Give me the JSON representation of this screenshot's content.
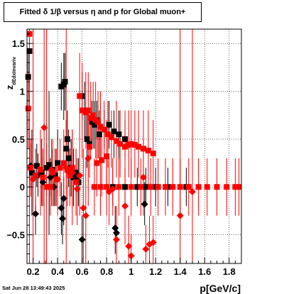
{
  "chart_data": {
    "type": "scatter",
    "title": "Fitted δ 1/β versus η and p for Global muon+",
    "xlabel": "p[GeV/c]",
    "ylabel": "z",
    "ylabel_sub": "dEdxInvariv",
    "xlim": [
      0.15,
      1.9
    ],
    "ylim": [
      -0.8,
      1.65
    ],
    "xticks": [
      0.2,
      0.4,
      0.6,
      0.8,
      1.0,
      1.2,
      1.4,
      1.6,
      1.8
    ],
    "xtick_labels": [
      "0.2",
      "0.4",
      "0.6",
      "0.8",
      "1",
      "1.2",
      "1.4",
      "1.6",
      "1.8"
    ],
    "yticks": [
      -0.5,
      0,
      0.5,
      1,
      1.5
    ],
    "ytick_labels": [
      "−0.5",
      "0",
      "0.5",
      "1",
      "1.5"
    ],
    "grid": true,
    "timestamp": "Sat Jun 28 13:49:43 2025",
    "series": [
      {
        "color": "#000000",
        "marker": "square",
        "points": [
          {
            "x": 0.17,
            "y": 1.42,
            "lo": -0.8,
            "hi": 1.65
          },
          {
            "x": 0.16,
            "y": 1.15,
            "lo": 0.9,
            "hi": 1.4
          },
          {
            "x": 0.19,
            "y": 0.15,
            "lo": -0.3,
            "hi": 0.6
          },
          {
            "x": 0.23,
            "y": 0.22,
            "lo": 0.0,
            "hi": 0.45
          },
          {
            "x": 0.27,
            "y": 0.15,
            "lo": -0.2,
            "hi": 0.5
          },
          {
            "x": 0.31,
            "y": 0.2,
            "lo": -0.1,
            "hi": 0.45
          },
          {
            "x": 0.33,
            "y": 0.23,
            "lo": -0.5,
            "hi": 1.0
          },
          {
            "x": 0.36,
            "y": 0.18,
            "lo": 0.0,
            "hi": 0.4
          },
          {
            "x": 0.38,
            "y": 0.12,
            "lo": -0.2,
            "hi": 0.4
          },
          {
            "x": 0.4,
            "y": 0.25,
            "lo": -0.1,
            "hi": 0.6
          },
          {
            "x": 0.43,
            "y": 1.05,
            "lo": 0.8,
            "hi": 1.3
          },
          {
            "x": 0.45,
            "y": 1.07,
            "lo": 0.7,
            "hi": 1.4
          },
          {
            "x": 0.46,
            "y": 1.1,
            "lo": 0.8,
            "hi": 1.4
          },
          {
            "x": 0.47,
            "y": 0.4,
            "lo": 0.1,
            "hi": 0.7
          },
          {
            "x": 0.48,
            "y": 0.5,
            "lo": 0.2,
            "hi": 0.8
          },
          {
            "x": 0.49,
            "y": 0.3,
            "lo": 0.0,
            "hi": 0.6
          },
          {
            "x": 0.51,
            "y": 0.2,
            "lo": -0.1,
            "hi": 0.5
          },
          {
            "x": 0.53,
            "y": 0.1,
            "lo": -0.2,
            "hi": 0.4
          },
          {
            "x": 0.55,
            "y": 0.15,
            "lo": -0.1,
            "hi": 0.4
          },
          {
            "x": 0.57,
            "y": 0.05,
            "lo": -0.2,
            "hi": 0.3
          },
          {
            "x": 0.6,
            "y": 0.95,
            "lo": 0.7,
            "hi": 1.2
          },
          {
            "x": 0.62,
            "y": 0.8,
            "lo": 0.5,
            "hi": 1.1
          },
          {
            "x": 0.64,
            "y": 0.5,
            "lo": 0.2,
            "hi": 0.8
          },
          {
            "x": 0.66,
            "y": 0.45,
            "lo": 0.2,
            "hi": 0.7
          },
          {
            "x": 0.68,
            "y": 0.68,
            "lo": 0.4,
            "hi": 0.9
          },
          {
            "x": 0.7,
            "y": 0.65,
            "lo": 0.4,
            "hi": 0.9
          },
          {
            "x": 0.72,
            "y": 0.7,
            "lo": 0.5,
            "hi": 0.9
          },
          {
            "x": 0.74,
            "y": 0.55,
            "lo": 0.3,
            "hi": 0.8
          },
          {
            "x": 0.78,
            "y": 0.6,
            "lo": 0.4,
            "hi": 0.8
          },
          {
            "x": 0.82,
            "y": 0.65,
            "lo": 0.4,
            "hi": 0.9
          },
          {
            "x": 0.86,
            "y": 0.58,
            "lo": 0.3,
            "hi": 0.8
          },
          {
            "x": 0.9,
            "y": 0.55,
            "lo": 0.3,
            "hi": 0.8
          },
          {
            "x": 0.95,
            "y": 0.5,
            "lo": 0.3,
            "hi": 0.7
          },
          {
            "x": 0.85,
            "y": 0.0,
            "lo": -0.2,
            "hi": 0.2
          },
          {
            "x": 0.95,
            "y": 0.0,
            "lo": -0.2,
            "hi": 0.2
          },
          {
            "x": 1.05,
            "y": 0.0,
            "lo": -0.2,
            "hi": 0.2
          },
          {
            "x": 1.12,
            "y": 0.0,
            "lo": -0.2,
            "hi": 0.2
          },
          {
            "x": 1.2,
            "y": 0.0,
            "lo": -0.2,
            "hi": 0.2
          },
          {
            "x": 1.3,
            "y": 0.0,
            "lo": -0.2,
            "hi": 0.2
          },
          {
            "x": 1.45,
            "y": 0.0,
            "lo": -0.2,
            "hi": 0.2
          }
        ]
      },
      {
        "color": "#000000",
        "marker": "diamond",
        "points": [
          {
            "x": 0.18,
            "y": 0.22,
            "lo": 0.0,
            "hi": 0.45
          },
          {
            "x": 0.22,
            "y": -0.28,
            "lo": -0.5,
            "hi": -0.1
          },
          {
            "x": 0.24,
            "y": 0.12,
            "lo": -0.1,
            "hi": 0.35
          },
          {
            "x": 0.28,
            "y": 0.05,
            "lo": -0.2,
            "hi": 0.3
          },
          {
            "x": 0.34,
            "y": 0.1,
            "lo": -0.1,
            "hi": 0.3
          },
          {
            "x": 0.37,
            "y": 0.0,
            "lo": -0.2,
            "hi": 0.2
          },
          {
            "x": 0.43,
            "y": -0.22,
            "lo": -0.5,
            "hi": 0.05
          },
          {
            "x": 0.44,
            "y": -0.33,
            "lo": -0.6,
            "hi": -0.1
          },
          {
            "x": 0.45,
            "y": -0.12,
            "lo": -0.4,
            "hi": 0.1
          },
          {
            "x": 0.5,
            "y": 0.15,
            "lo": -0.1,
            "hi": 0.4
          },
          {
            "x": 0.55,
            "y": 0.08,
            "lo": -0.1,
            "hi": 0.3
          },
          {
            "x": 0.6,
            "y": -0.55,
            "lo": -0.8,
            "hi": -0.3
          },
          {
            "x": 0.87,
            "y": -0.43,
            "lo": -0.7,
            "hi": -0.2
          },
          {
            "x": 0.88,
            "y": -0.48,
            "lo": -0.8,
            "hi": -0.2
          },
          {
            "x": 1.11,
            "y": -0.18,
            "lo": -0.4,
            "hi": 0.05
          }
        ]
      },
      {
        "color": "#ff0000",
        "marker": "square",
        "points": [
          {
            "x": 0.17,
            "y": 1.6,
            "lo": -0.8,
            "hi": 1.65
          },
          {
            "x": 0.16,
            "y": 0.82,
            "lo": 0.4,
            "hi": 1.2
          },
          {
            "x": 0.18,
            "y": 0.2,
            "lo": -0.1,
            "hi": 0.5
          },
          {
            "x": 0.22,
            "y": 0.12,
            "lo": -0.2,
            "hi": 0.4
          },
          {
            "x": 0.26,
            "y": 0.18,
            "lo": -0.3,
            "hi": 0.6
          },
          {
            "x": 0.28,
            "y": 0.1,
            "lo": -0.2,
            "hi": 0.4
          },
          {
            "x": 0.31,
            "y": 0.0,
            "lo": -0.8,
            "hi": 1.65
          },
          {
            "x": 0.34,
            "y": 0.0,
            "lo": -0.3,
            "hi": 0.3
          },
          {
            "x": 0.36,
            "y": 0.15,
            "lo": -0.2,
            "hi": 0.5
          },
          {
            "x": 0.39,
            "y": 0.08,
            "lo": -0.2,
            "hi": 0.4
          },
          {
            "x": 0.42,
            "y": 0.2,
            "lo": -0.1,
            "hi": 0.5
          },
          {
            "x": 0.45,
            "y": 0.25,
            "lo": -0.1,
            "hi": 0.6
          },
          {
            "x": 0.48,
            "y": 0.18,
            "lo": -0.2,
            "hi": 0.5
          },
          {
            "x": 0.5,
            "y": 0.12,
            "lo": -0.2,
            "hi": 0.4
          },
          {
            "x": 0.52,
            "y": 0.2,
            "lo": -0.2,
            "hi": 0.6
          },
          {
            "x": 0.55,
            "y": 0.05,
            "lo": -0.3,
            "hi": 0.4
          },
          {
            "x": 0.58,
            "y": 0.95,
            "lo": 0.5,
            "hi": 1.4
          },
          {
            "x": 0.6,
            "y": 0.8,
            "lo": 0.3,
            "hi": 1.3
          },
          {
            "x": 0.63,
            "y": 0.78,
            "lo": 0.4,
            "hi": 1.2
          },
          {
            "x": 0.65,
            "y": 0.8,
            "lo": 0.4,
            "hi": 1.2
          },
          {
            "x": 0.67,
            "y": 0.72,
            "lo": 0.3,
            "hi": 1.1
          },
          {
            "x": 0.69,
            "y": 0.75,
            "lo": 0.4,
            "hi": 1.1
          },
          {
            "x": 0.71,
            "y": 0.7,
            "lo": 0.3,
            "hi": 1.1
          },
          {
            "x": 0.73,
            "y": 0.68,
            "lo": 0.3,
            "hi": 1.0
          },
          {
            "x": 0.75,
            "y": 0.63,
            "lo": 0.3,
            "hi": 1.0
          },
          {
            "x": 0.78,
            "y": 0.6,
            "lo": 0.3,
            "hi": 0.9
          },
          {
            "x": 0.81,
            "y": 0.55,
            "lo": 0.2,
            "hi": 0.9
          },
          {
            "x": 0.84,
            "y": 0.52,
            "lo": 0.2,
            "hi": 0.8
          },
          {
            "x": 0.88,
            "y": 0.48,
            "lo": 0.1,
            "hi": 0.9
          },
          {
            "x": 0.91,
            "y": 0.45,
            "lo": 0.1,
            "hi": 0.8
          },
          {
            "x": 0.95,
            "y": 0.42,
            "lo": 0.0,
            "hi": 0.8
          },
          {
            "x": 0.98,
            "y": 0.44,
            "lo": 0.1,
            "hi": 0.8
          },
          {
            "x": 1.0,
            "y": 0.45,
            "lo": 0.1,
            "hi": 0.8
          },
          {
            "x": 1.03,
            "y": 0.44,
            "lo": 0.1,
            "hi": 0.8
          },
          {
            "x": 1.06,
            "y": 0.42,
            "lo": 0.1,
            "hi": 0.8
          },
          {
            "x": 1.1,
            "y": 0.4,
            "lo": 0.0,
            "hi": 0.8
          },
          {
            "x": 1.14,
            "y": 0.38,
            "lo": 0.0,
            "hi": 0.8
          },
          {
            "x": 1.18,
            "y": 0.35,
            "lo": 0.0,
            "hi": 0.7
          },
          {
            "x": 0.66,
            "y": 0.42,
            "lo": 0.1,
            "hi": 0.8
          },
          {
            "x": 0.8,
            "y": 0.32,
            "lo": 0.0,
            "hi": 0.7
          },
          {
            "x": 0.76,
            "y": 0.28,
            "lo": -0.1,
            "hi": 0.6
          },
          {
            "x": 0.72,
            "y": 0.25,
            "lo": -0.1,
            "hi": 0.6
          },
          {
            "x": 0.7,
            "y": 0.0,
            "lo": -0.3,
            "hi": 0.3
          },
          {
            "x": 0.75,
            "y": 0.0,
            "lo": -0.3,
            "hi": 0.3
          },
          {
            "x": 0.8,
            "y": 0.0,
            "lo": -0.3,
            "hi": 0.3
          },
          {
            "x": 0.9,
            "y": 0.0,
            "lo": -0.3,
            "hi": 0.3
          },
          {
            "x": 1.0,
            "y": 0.0,
            "lo": -0.3,
            "hi": 0.3
          },
          {
            "x": 1.08,
            "y": 0.0,
            "lo": -0.3,
            "hi": 0.3
          },
          {
            "x": 1.16,
            "y": 0.0,
            "lo": -0.3,
            "hi": 0.3
          },
          {
            "x": 1.22,
            "y": 0.0,
            "lo": -0.3,
            "hi": 0.3
          },
          {
            "x": 1.28,
            "y": 0.0,
            "lo": -0.3,
            "hi": 0.3
          },
          {
            "x": 1.34,
            "y": 0.0,
            "lo": -0.3,
            "hi": 0.3
          },
          {
            "x": 1.4,
            "y": 0.0,
            "lo": -0.3,
            "hi": 0.3
          },
          {
            "x": 1.47,
            "y": 0.0,
            "lo": -0.3,
            "hi": 0.3
          },
          {
            "x": 1.55,
            "y": 0.0,
            "lo": -0.3,
            "hi": 0.3
          },
          {
            "x": 1.62,
            "y": 0.0,
            "lo": -0.3,
            "hi": 0.3
          },
          {
            "x": 1.7,
            "y": 0.0,
            "lo": -0.3,
            "hi": 0.3
          },
          {
            "x": 1.78,
            "y": 0.0,
            "lo": -0.3,
            "hi": 0.3
          },
          {
            "x": 1.85,
            "y": 0.0,
            "lo": -0.3,
            "hi": 0.3
          },
          {
            "x": 1.88,
            "y": 0.0,
            "lo": -0.3,
            "hi": 0.3
          }
        ]
      },
      {
        "color": "#ff0000",
        "marker": "diamond",
        "points": [
          {
            "x": 0.29,
            "y": 0.62,
            "lo": -0.8,
            "hi": 1.65
          },
          {
            "x": 0.2,
            "y": 0.08,
            "lo": -0.8,
            "hi": 1.65
          },
          {
            "x": 0.35,
            "y": 0.18,
            "lo": -0.2,
            "hi": 0.5
          },
          {
            "x": 0.4,
            "y": 0.08,
            "lo": -0.3,
            "hi": 0.4
          },
          {
            "x": 0.47,
            "y": 0.2,
            "lo": -0.8,
            "hi": 1.65
          },
          {
            "x": 0.52,
            "y": 0.15,
            "lo": -0.4,
            "hi": 0.6
          },
          {
            "x": 0.56,
            "y": -0.02,
            "lo": -0.4,
            "hi": 0.3
          },
          {
            "x": 0.58,
            "y": 0.12,
            "lo": -0.3,
            "hi": 0.5
          },
          {
            "x": 0.61,
            "y": -0.22,
            "lo": -0.8,
            "hi": 0.4
          },
          {
            "x": 0.63,
            "y": -0.3,
            "lo": -0.8,
            "hi": 0.3
          },
          {
            "x": 0.65,
            "y": 0.3,
            "lo": -0.2,
            "hi": 0.8
          },
          {
            "x": 0.82,
            "y": -0.05,
            "lo": -0.4,
            "hi": 0.3
          },
          {
            "x": 0.85,
            "y": -0.02,
            "lo": -0.3,
            "hi": 0.3
          },
          {
            "x": 0.88,
            "y": -0.55,
            "lo": -0.8,
            "hi": -0.2
          },
          {
            "x": 0.95,
            "y": -0.2,
            "lo": -0.6,
            "hi": 0.2
          },
          {
            "x": 0.98,
            "y": -0.62,
            "lo": -0.8,
            "hi": -0.3
          },
          {
            "x": 1.0,
            "y": -0.72,
            "lo": -0.8,
            "hi": -0.5
          },
          {
            "x": 1.1,
            "y": 0.1,
            "lo": -0.3,
            "hi": 0.5
          },
          {
            "x": 1.12,
            "y": -0.65,
            "lo": -0.8,
            "hi": -0.4
          },
          {
            "x": 1.15,
            "y": -0.6,
            "lo": -0.8,
            "hi": -0.3
          },
          {
            "x": 1.18,
            "y": -0.58,
            "lo": -0.8,
            "hi": -0.3
          },
          {
            "x": 1.4,
            "y": -0.3,
            "lo": -0.8,
            "hi": 1.65
          },
          {
            "x": 1.5,
            "y": -0.05,
            "lo": -0.8,
            "hi": 1.65
          }
        ]
      }
    ]
  }
}
